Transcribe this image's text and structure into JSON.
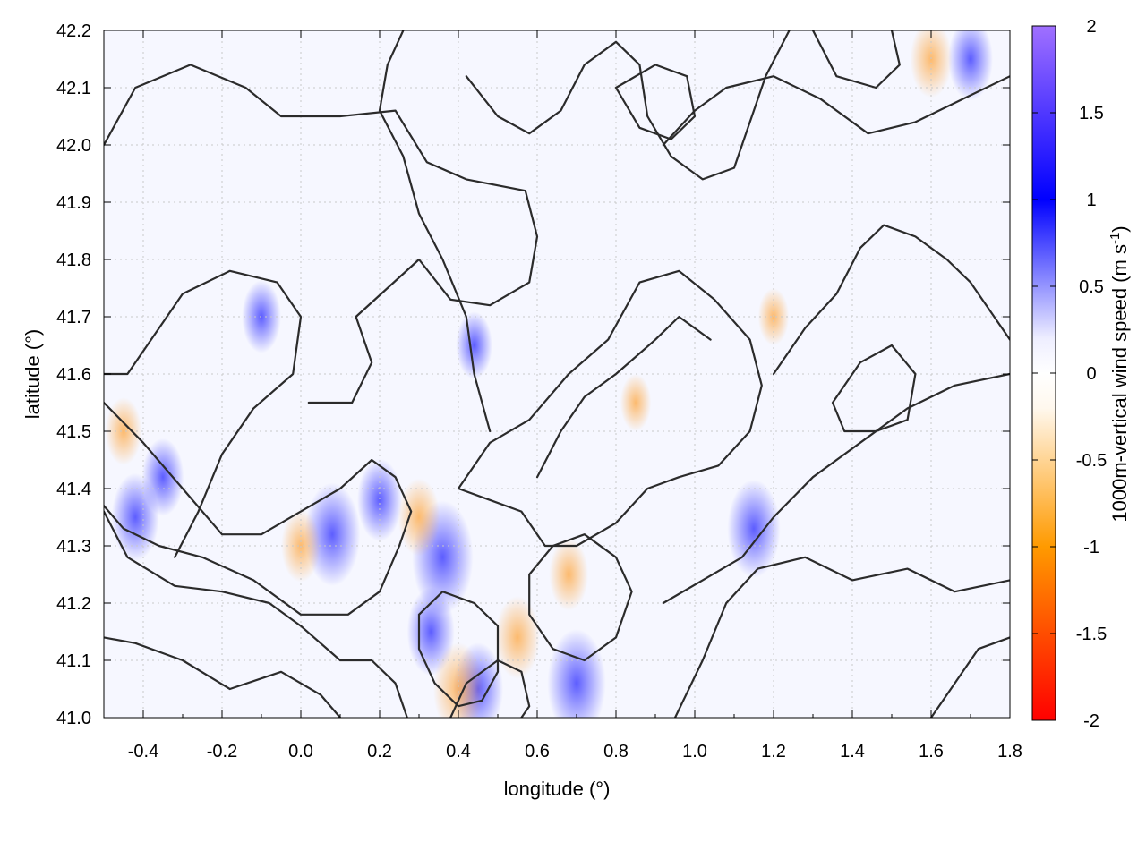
{
  "chart_data": {
    "type": "heatmap",
    "title": "",
    "xlabel": "longitude (°)",
    "ylabel": "latitude (°)",
    "xlim": [
      -0.5,
      1.8
    ],
    "ylim": [
      41.0,
      42.2
    ],
    "xticks": [
      -0.4,
      -0.2,
      0.0,
      0.2,
      0.4,
      0.6,
      0.8,
      1.0,
      1.2,
      1.4,
      1.6,
      1.8
    ],
    "xtick_labels": [
      "-0.4",
      "-0.2",
      "0.0",
      "0.2",
      "0.4",
      "0.6",
      "0.8",
      "1.0",
      "1.2",
      "1.4",
      "1.6",
      "1.8"
    ],
    "yticks": [
      41.0,
      41.1,
      41.2,
      41.3,
      41.4,
      41.5,
      41.6,
      41.7,
      41.8,
      41.9,
      42.0,
      42.1,
      42.2
    ],
    "ytick_labels": [
      "41.0",
      "41.1",
      "41.2",
      "41.3",
      "41.4",
      "41.5",
      "41.6",
      "41.7",
      "41.8",
      "41.9",
      "42.0",
      "42.1",
      "42.2"
    ],
    "grid": true,
    "colorbar": {
      "label_main": "1000m-vertical wind speed (m s",
      "label_sup": "-1",
      "label_close": ")",
      "range": [
        -2,
        2
      ],
      "ticks": [
        2,
        1.5,
        1,
        0.5,
        0,
        -0.5,
        -1,
        -1.5,
        -2
      ],
      "tick_labels": [
        "2",
        "1.5",
        "1",
        "0.5",
        "0",
        "-0.5",
        "-1",
        "-1.5",
        "-2"
      ],
      "colors": [
        "#ff0000",
        "#ff9a00",
        "#fff8ee",
        "#ffffff",
        "#eeeeff",
        "#0000ff",
        "#a070ff"
      ]
    },
    "features": [
      {
        "lon": 0.08,
        "lat": 41.32,
        "value": 1.2
      },
      {
        "lon": 0.2,
        "lat": 41.38,
        "value": 0.8
      },
      {
        "lon": 0.36,
        "lat": 41.28,
        "value": 1.4
      },
      {
        "lon": 0.33,
        "lat": 41.15,
        "value": 0.9
      },
      {
        "lon": 0.45,
        "lat": 41.05,
        "value": 1.0
      },
      {
        "lon": 0.7,
        "lat": 41.06,
        "value": 1.3
      },
      {
        "lon": -0.42,
        "lat": 41.35,
        "value": 0.9
      },
      {
        "lon": -0.35,
        "lat": 41.42,
        "value": 0.7
      },
      {
        "lon": -0.1,
        "lat": 41.7,
        "value": 0.6
      },
      {
        "lon": 0.44,
        "lat": 41.65,
        "value": 0.5
      },
      {
        "lon": 1.15,
        "lat": 41.33,
        "value": 1.1
      },
      {
        "lon": 1.7,
        "lat": 42.15,
        "value": 0.8
      },
      {
        "lon": 0.4,
        "lat": 41.05,
        "value": -1.0
      },
      {
        "lon": 0.55,
        "lat": 41.14,
        "value": -0.8
      },
      {
        "lon": 0.0,
        "lat": 41.3,
        "value": -0.6
      },
      {
        "lon": 0.3,
        "lat": 41.35,
        "value": -0.7
      },
      {
        "lon": -0.45,
        "lat": 41.5,
        "value": -0.5
      },
      {
        "lon": 0.68,
        "lat": 41.25,
        "value": -0.6
      },
      {
        "lon": 1.6,
        "lat": 42.15,
        "value": -0.7
      },
      {
        "lon": 0.85,
        "lat": 41.55,
        "value": -0.3
      },
      {
        "lon": 1.2,
        "lat": 41.7,
        "value": -0.3
      }
    ],
    "contours": [
      [
        [
          0.27,
          41.0
        ],
        [
          0.24,
          41.06
        ],
        [
          0.18,
          41.1
        ],
        [
          0.1,
          41.1
        ],
        [
          0.0,
          41.16
        ],
        [
          -0.08,
          41.2
        ],
        [
          -0.2,
          41.22
        ],
        [
          -0.32,
          41.23
        ],
        [
          -0.44,
          41.28
        ],
        [
          -0.5,
          41.36
        ]
      ],
      [
        [
          0.1,
          41.0
        ],
        [
          0.05,
          41.04
        ],
        [
          -0.05,
          41.08
        ],
        [
          -0.18,
          41.05
        ],
        [
          -0.3,
          41.1
        ],
        [
          -0.42,
          41.13
        ],
        [
          -0.5,
          41.14
        ]
      ],
      [
        [
          0.02,
          41.55
        ],
        [
          0.13,
          41.55
        ],
        [
          0.18,
          41.62
        ],
        [
          0.14,
          41.7
        ],
        [
          0.22,
          41.75
        ],
        [
          0.3,
          41.8
        ],
        [
          0.38,
          41.73
        ],
        [
          0.48,
          41.72
        ],
        [
          0.58,
          41.76
        ],
        [
          0.6,
          41.84
        ],
        [
          0.57,
          41.92
        ],
        [
          0.42,
          41.94
        ],
        [
          0.32,
          41.97
        ],
        [
          0.24,
          42.06
        ],
        [
          0.1,
          42.05
        ],
        [
          -0.05,
          42.05
        ],
        [
          -0.14,
          42.1
        ],
        [
          -0.28,
          42.14
        ],
        [
          -0.42,
          42.1
        ],
        [
          -0.5,
          42.0
        ]
      ],
      [
        [
          -0.5,
          41.55
        ],
        [
          -0.4,
          41.48
        ],
        [
          -0.3,
          41.4
        ],
        [
          -0.2,
          41.32
        ],
        [
          -0.1,
          41.32
        ],
        [
          0.0,
          41.36
        ],
        [
          0.1,
          41.4
        ],
        [
          0.18,
          41.45
        ],
        [
          0.24,
          41.42
        ],
        [
          0.28,
          41.36
        ],
        [
          0.25,
          41.3
        ],
        [
          0.2,
          41.22
        ],
        [
          0.12,
          41.18
        ],
        [
          0.0,
          41.18
        ],
        [
          -0.12,
          41.24
        ],
        [
          -0.25,
          41.28
        ],
        [
          -0.36,
          41.3
        ],
        [
          -0.45,
          41.33
        ],
        [
          -0.5,
          41.37
        ]
      ],
      [
        [
          0.4,
          41.4
        ],
        [
          0.48,
          41.48
        ],
        [
          0.58,
          41.52
        ],
        [
          0.68,
          41.6
        ],
        [
          0.78,
          41.66
        ],
        [
          0.86,
          41.76
        ],
        [
          0.96,
          41.78
        ],
        [
          1.05,
          41.73
        ],
        [
          1.14,
          41.66
        ],
        [
          1.17,
          41.58
        ],
        [
          1.14,
          41.5
        ],
        [
          1.06,
          41.44
        ],
        [
          0.96,
          41.42
        ],
        [
          0.88,
          41.4
        ],
        [
          0.8,
          41.34
        ],
        [
          0.7,
          41.3
        ],
        [
          0.62,
          41.3
        ],
        [
          0.56,
          41.36
        ],
        [
          0.48,
          41.38
        ],
        [
          0.4,
          41.4
        ]
      ],
      [
        [
          0.92,
          41.2
        ],
        [
          1.02,
          41.24
        ],
        [
          1.12,
          41.28
        ],
        [
          1.2,
          41.35
        ],
        [
          1.3,
          41.42
        ],
        [
          1.42,
          41.48
        ],
        [
          1.54,
          41.54
        ],
        [
          1.66,
          41.58
        ],
        [
          1.8,
          41.6
        ]
      ],
      [
        [
          0.95,
          41.0
        ],
        [
          1.02,
          41.1
        ],
        [
          1.08,
          41.2
        ],
        [
          1.16,
          41.26
        ],
        [
          1.28,
          41.28
        ],
        [
          1.4,
          41.24
        ],
        [
          1.54,
          41.26
        ],
        [
          1.66,
          41.22
        ],
        [
          1.8,
          41.24
        ]
      ],
      [
        [
          0.92,
          42.0
        ],
        [
          1.0,
          42.06
        ],
        [
          1.08,
          42.1
        ],
        [
          1.2,
          42.12
        ],
        [
          1.32,
          42.08
        ],
        [
          1.44,
          42.02
        ],
        [
          1.56,
          42.04
        ],
        [
          1.68,
          42.08
        ],
        [
          1.8,
          42.12
        ]
      ],
      [
        [
          0.42,
          42.12
        ],
        [
          0.5,
          42.05
        ],
        [
          0.58,
          42.02
        ],
        [
          0.66,
          42.06
        ],
        [
          0.72,
          42.14
        ],
        [
          0.8,
          42.18
        ],
        [
          0.86,
          42.14
        ],
        [
          0.88,
          42.05
        ],
        [
          0.94,
          41.98
        ],
        [
          1.02,
          41.94
        ],
        [
          1.1,
          41.96
        ],
        [
          1.14,
          42.04
        ],
        [
          1.18,
          42.12
        ],
        [
          1.24,
          42.2
        ]
      ],
      [
        [
          0.8,
          42.1
        ],
        [
          0.86,
          42.03
        ],
        [
          0.94,
          42.01
        ],
        [
          1.0,
          42.05
        ],
        [
          0.98,
          42.12
        ],
        [
          0.9,
          42.14
        ],
        [
          0.8,
          42.1
        ]
      ],
      [
        [
          1.3,
          42.2
        ],
        [
          1.36,
          42.12
        ],
        [
          1.46,
          42.1
        ],
        [
          1.52,
          42.14
        ],
        [
          1.5,
          42.2
        ]
      ],
      [
        [
          1.35,
          41.55
        ],
        [
          1.42,
          41.62
        ],
        [
          1.5,
          41.65
        ],
        [
          1.56,
          41.6
        ],
        [
          1.54,
          41.52
        ],
        [
          1.46,
          41.5
        ],
        [
          1.38,
          41.5
        ],
        [
          1.35,
          41.55
        ]
      ],
      [
        [
          0.58,
          41.25
        ],
        [
          0.64,
          41.3
        ],
        [
          0.72,
          41.32
        ],
        [
          0.8,
          41.28
        ],
        [
          0.84,
          41.22
        ],
        [
          0.8,
          41.14
        ],
        [
          0.72,
          41.1
        ],
        [
          0.64,
          41.12
        ],
        [
          0.58,
          41.18
        ],
        [
          0.58,
          41.25
        ]
      ],
      [
        [
          0.38,
          41.0
        ],
        [
          0.42,
          41.06
        ],
        [
          0.5,
          41.1
        ],
        [
          0.56,
          41.08
        ],
        [
          0.58,
          41.02
        ],
        [
          0.56,
          41.0
        ]
      ],
      [
        [
          0.3,
          41.18
        ],
        [
          0.36,
          41.22
        ],
        [
          0.44,
          41.2
        ],
        [
          0.5,
          41.16
        ],
        [
          0.5,
          41.08
        ],
        [
          0.46,
          41.03
        ],
        [
          0.4,
          41.02
        ],
        [
          0.34,
          41.06
        ],
        [
          0.3,
          41.12
        ],
        [
          0.3,
          41.18
        ]
      ],
      [
        [
          -0.32,
          41.28
        ],
        [
          -0.26,
          41.36
        ],
        [
          -0.2,
          41.46
        ],
        [
          -0.12,
          41.54
        ],
        [
          -0.02,
          41.6
        ],
        [
          0.0,
          41.7
        ],
        [
          -0.06,
          41.76
        ],
        [
          -0.18,
          41.78
        ],
        [
          -0.3,
          41.74
        ],
        [
          -0.38,
          41.66
        ],
        [
          -0.44,
          41.6
        ],
        [
          -0.5,
          41.6
        ]
      ],
      [
        [
          0.48,
          41.5
        ],
        [
          0.44,
          41.6
        ],
        [
          0.42,
          41.7
        ],
        [
          0.36,
          41.8
        ],
        [
          0.3,
          41.88
        ],
        [
          0.26,
          41.98
        ],
        [
          0.2,
          42.06
        ],
        [
          0.22,
          42.14
        ],
        [
          0.26,
          42.2
        ]
      ],
      [
        [
          0.6,
          41.42
        ],
        [
          0.66,
          41.5
        ],
        [
          0.72,
          41.56
        ],
        [
          0.8,
          41.6
        ],
        [
          0.9,
          41.66
        ],
        [
          0.96,
          41.7
        ],
        [
          1.04,
          41.66
        ]
      ],
      [
        [
          1.6,
          41.0
        ],
        [
          1.66,
          41.06
        ],
        [
          1.72,
          41.12
        ],
        [
          1.8,
          41.14
        ]
      ],
      [
        [
          1.2,
          41.6
        ],
        [
          1.28,
          41.68
        ],
        [
          1.36,
          41.74
        ],
        [
          1.42,
          41.82
        ],
        [
          1.48,
          41.86
        ],
        [
          1.56,
          41.84
        ],
        [
          1.64,
          41.8
        ],
        [
          1.7,
          41.76
        ],
        [
          1.76,
          41.7
        ],
        [
          1.8,
          41.66
        ]
      ]
    ]
  }
}
